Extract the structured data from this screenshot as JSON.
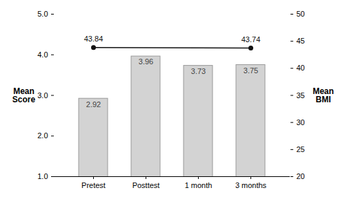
{
  "chart_data": {
    "type": "bar",
    "categories": [
      "Pretest",
      "Posttest",
      "1 month",
      "3 months"
    ],
    "ylabel": "Mean\nScore",
    "y2label": "Mean\nBMI",
    "ylim": [
      1,
      5
    ],
    "yticks": [
      1,
      2,
      3,
      4,
      5
    ],
    "y2lim": [
      20,
      50
    ],
    "y2ticks": [
      20,
      25,
      30,
      35,
      40,
      45,
      50
    ],
    "grid": false,
    "data_labels": true,
    "series": [
      {
        "type": "bar",
        "color": "#d3d3d3",
        "values": [
          2.92,
          3.96,
          3.73,
          3.75
        ]
      },
      {
        "type": "line",
        "axis": "y2",
        "color": "#111111",
        "marker": "circle",
        "x": [
          "Pretest",
          "3 months"
        ],
        "values": [
          43.84,
          43.74
        ]
      }
    ]
  }
}
